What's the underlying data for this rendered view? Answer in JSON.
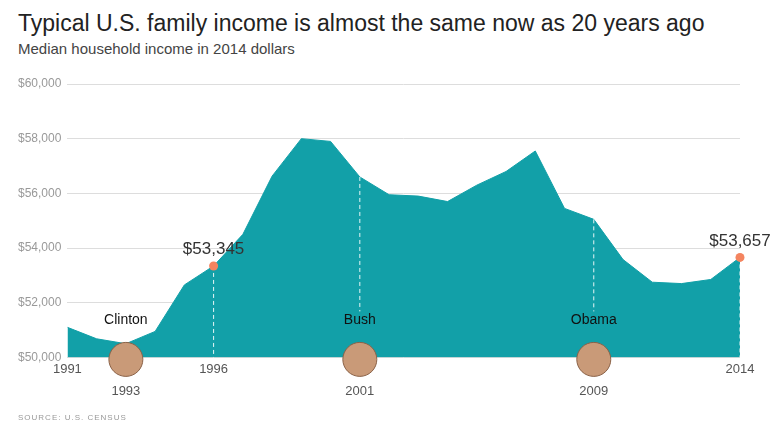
{
  "chart_data": {
    "type": "area",
    "title": "Typical U.S. family income is almost the same now as 20 years ago",
    "subtitle": "Median household income in 2014 dollars",
    "source": "SOURCE: U.S. CENSUS",
    "x": [
      1991,
      1992,
      1993,
      1994,
      1995,
      1996,
      1997,
      1998,
      1999,
      2000,
      2001,
      2002,
      2003,
      2004,
      2005,
      2006,
      2007,
      2008,
      2009,
      2010,
      2011,
      2012,
      2013,
      2014
    ],
    "values": [
      51100,
      50680,
      50500,
      50950,
      52650,
      53345,
      54500,
      56630,
      58000,
      57900,
      56600,
      55950,
      55900,
      55700,
      56300,
      56800,
      57550,
      55450,
      55050,
      53580,
      52750,
      52700,
      52850,
      53657
    ],
    "color": "#12a0a8",
    "xlim": [
      1991,
      2014
    ],
    "xticks": [
      1991,
      1996,
      2014
    ],
    "ylim": [
      50000,
      60000
    ],
    "yticks": [
      {
        "value": 50000,
        "label": "$50,000"
      },
      {
        "value": 52000,
        "label": "$52,000"
      },
      {
        "value": 54000,
        "label": "$54,000"
      },
      {
        "value": 56000,
        "label": "$56,000"
      },
      {
        "value": 58000,
        "label": "$58,000"
      },
      {
        "value": 60000,
        "label": "$60,000"
      }
    ],
    "grid": true,
    "annotations": [
      {
        "x": 1996,
        "value": 53345,
        "label": "$53,345",
        "color": "#f4845f"
      },
      {
        "x": 2014,
        "value": 53657,
        "label": "$53,657",
        "color": "#f4845f"
      }
    ],
    "presidents": [
      {
        "name": "Clinton",
        "x": 1993
      },
      {
        "name": "Bush",
        "x": 2001
      },
      {
        "name": "Obama",
        "x": 2009
      }
    ]
  }
}
